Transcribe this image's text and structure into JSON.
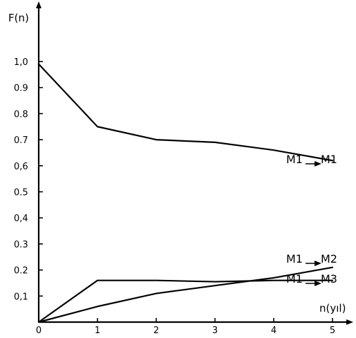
{
  "chart_data": {
    "type": "line",
    "ylabel": "F(n)",
    "xlabel": "n(yıl)",
    "x": [
      0,
      1,
      2,
      3,
      4,
      5
    ],
    "xlim": [
      0,
      5
    ],
    "ylim": [
      0,
      1.0
    ],
    "x_ticks": [
      0,
      1,
      2,
      3,
      4,
      5
    ],
    "y_ticks": [
      0.1,
      0.2,
      0.3,
      0.4,
      0.5,
      0.6,
      0.7,
      0.8,
      0.9,
      1.0
    ],
    "y_tick_labels": [
      "0,1",
      "0.2",
      "0.3",
      "0,4",
      "0.5",
      "0,6",
      "0.7",
      "0.8",
      "0.9",
      "1,0"
    ],
    "grid": false,
    "legend": "none",
    "series": [
      {
        "label_from": "M1",
        "label_to": "M1",
        "values": [
          0.99,
          0.75,
          0.7,
          0.69,
          0.66,
          0.62
        ],
        "color": "#000000"
      },
      {
        "label_from": "M1",
        "label_to": "M2",
        "values": [
          0.0,
          0.06,
          0.11,
          0.14,
          0.17,
          0.21
        ],
        "color": "#000000"
      },
      {
        "label_from": "M1",
        "label_to": "M3",
        "values": [
          0.0,
          0.16,
          0.16,
          0.155,
          0.16,
          0.16
        ],
        "color": "#000000"
      }
    ]
  }
}
